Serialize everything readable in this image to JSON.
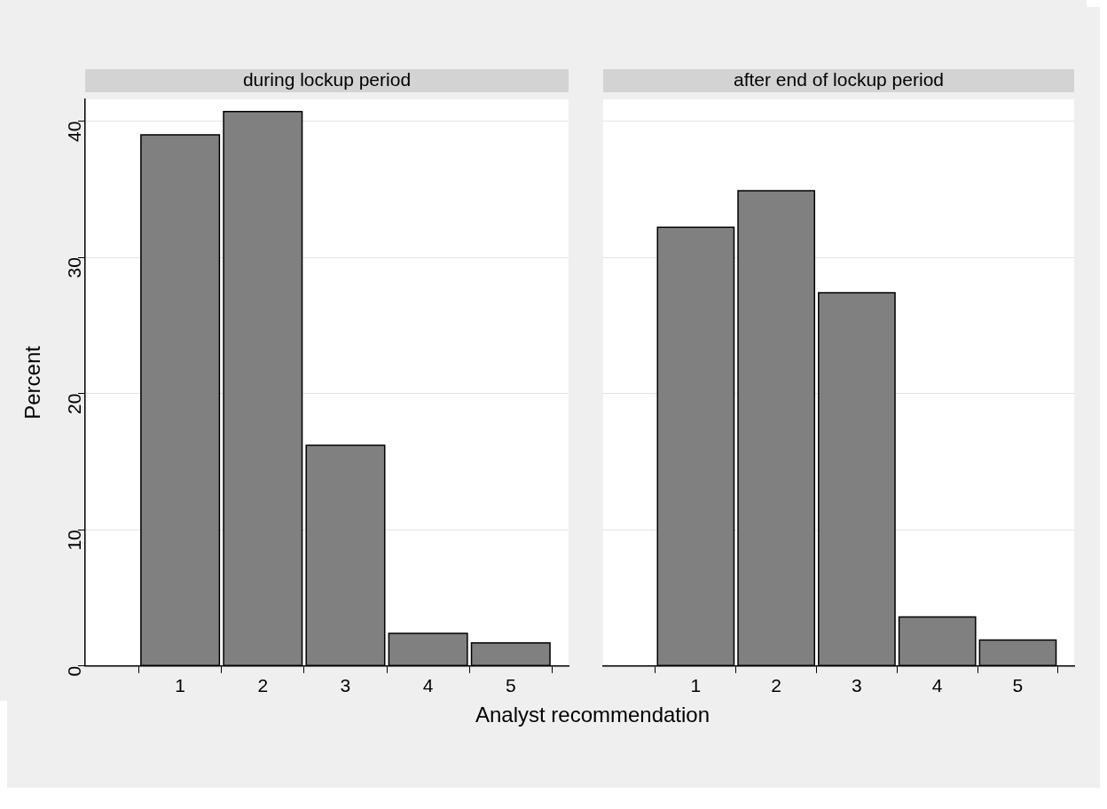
{
  "chart_data": [
    {
      "type": "histogram",
      "title": "during lockup period",
      "xlabel": "Analyst recommendation",
      "ylabel": "Percent",
      "bins": [
        0.5,
        1.5,
        2.5,
        3.5,
        4.5,
        5.5
      ],
      "values": [
        39.0,
        40.7,
        16.2,
        2.4,
        1.7
      ],
      "color": "#808080",
      "xlim": [
        -0.15,
        5.7
      ],
      "xticks": [
        1,
        2,
        3,
        4,
        5
      ],
      "ylim": [
        0,
        41.6
      ],
      "yticks": [
        0,
        10,
        20,
        30,
        40
      ],
      "grid": "y"
    },
    {
      "type": "histogram",
      "title": "after end of lockup period",
      "bins": [
        0.5,
        1.5,
        2.5,
        3.5,
        4.5,
        5.5
      ],
      "values": [
        32.2,
        34.9,
        27.4,
        3.6,
        1.9
      ],
      "color": "#808080",
      "xlim": [
        -0.15,
        5.7
      ],
      "xticks": [
        1,
        2,
        3,
        4,
        5
      ],
      "ylim": [
        0,
        41.6
      ],
      "yticks": [
        0,
        10,
        20,
        30,
        40
      ],
      "grid": "y",
      "tick_labels": "x"
    }
  ]
}
